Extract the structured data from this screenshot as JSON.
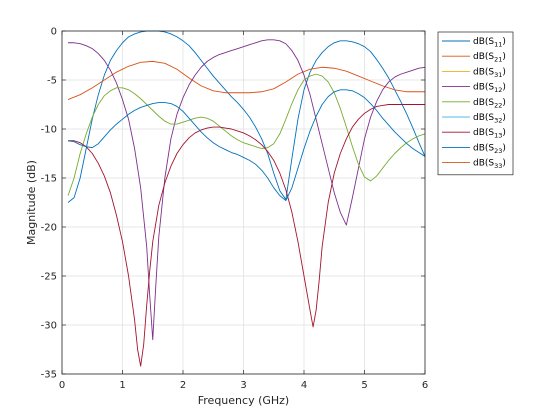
{
  "chart_data": {
    "type": "line",
    "xlabel": "Frequency (GHz)",
    "ylabel": "Magnitude (dB)",
    "xlim": [
      0,
      6
    ],
    "ylim": [
      -35,
      0
    ],
    "xticks": [
      0,
      1,
      2,
      3,
      4,
      5,
      6
    ],
    "yticks": [
      0,
      -5,
      -10,
      -15,
      -20,
      -25,
      -30,
      -35
    ],
    "grid": true,
    "legend_position": "outside-right-top",
    "series": [
      {
        "name": "dB(S11)",
        "label_main": "dB(S",
        "label_sub": "11",
        "label_end": ")",
        "color": "#0072BD",
        "x": [
          0.1,
          0.2,
          0.3,
          0.4,
          0.5,
          0.6,
          0.7,
          0.8,
          0.9,
          1.0,
          1.1,
          1.2,
          1.3,
          1.4,
          1.5,
          1.6,
          1.7,
          1.8,
          1.9,
          2.0,
          2.1,
          2.2,
          2.3,
          2.4,
          2.5,
          2.6,
          2.7,
          2.8,
          2.9,
          3.0,
          3.1,
          3.2,
          3.3,
          3.4,
          3.5,
          3.6,
          3.7,
          3.8,
          3.9,
          4.0,
          4.1,
          4.2,
          4.3,
          4.4,
          4.5,
          4.6,
          4.7,
          4.8,
          4.9,
          5.0,
          5.1,
          5.2,
          5.3,
          5.4,
          5.5,
          5.6,
          5.7,
          5.8,
          5.9,
          6.0
        ],
        "y": [
          -17.5,
          -17.0,
          -15.0,
          -12.0,
          -9.0,
          -6.5,
          -4.5,
          -3.0,
          -2.0,
          -1.2,
          -0.6,
          -0.3,
          -0.1,
          0.0,
          0.0,
          0.0,
          -0.1,
          -0.3,
          -0.6,
          -1.0,
          -1.5,
          -2.2,
          -3.0,
          -3.8,
          -4.6,
          -5.3,
          -6.0,
          -6.7,
          -7.3,
          -8.0,
          -8.8,
          -9.8,
          -11.0,
          -12.5,
          -14.5,
          -16.3,
          -17.2,
          -13.0,
          -9.0,
          -6.0,
          -4.2,
          -3.0,
          -2.2,
          -1.6,
          -1.2,
          -1.0,
          -1.0,
          -1.1,
          -1.3,
          -1.6,
          -2.1,
          -2.9,
          -3.8,
          -4.8,
          -6.0,
          -7.2,
          -8.5,
          -9.9,
          -11.4,
          -12.8
        ]
      },
      {
        "name": "dB(S21)",
        "label_main": "dB(S",
        "label_sub": "21",
        "label_end": ")",
        "color": "#D95319",
        "x": [
          0.1,
          0.3,
          0.5,
          0.7,
          0.9,
          1.1,
          1.3,
          1.5,
          1.7,
          1.9,
          2.1,
          2.3,
          2.5,
          2.7,
          2.9,
          3.1,
          3.3,
          3.5,
          3.7,
          3.9,
          4.1,
          4.3,
          4.5,
          4.7,
          4.9,
          5.1,
          5.3,
          5.5,
          5.7,
          5.9,
          6.0
        ],
        "y": [
          -7.0,
          -6.5,
          -5.8,
          -5.0,
          -4.2,
          -3.6,
          -3.2,
          -3.1,
          -3.3,
          -3.9,
          -4.8,
          -5.6,
          -6.1,
          -6.3,
          -6.3,
          -6.3,
          -6.2,
          -5.9,
          -5.2,
          -4.4,
          -3.9,
          -3.7,
          -3.8,
          -4.1,
          -4.6,
          -5.1,
          -5.6,
          -6.0,
          -6.2,
          -6.2,
          -6.2
        ]
      },
      {
        "name": "dB(S31)",
        "label_main": "dB(S",
        "label_sub": "31",
        "label_end": ")",
        "color": "#EDB120",
        "x": [],
        "y": []
      },
      {
        "name": "dB(S12)",
        "label_main": "dB(S",
        "label_sub": "12",
        "label_end": ")",
        "color": "#7E2F8E",
        "x": [
          0.1,
          0.2,
          0.3,
          0.4,
          0.5,
          0.6,
          0.7,
          0.8,
          0.9,
          1.0,
          1.1,
          1.2,
          1.3,
          1.4,
          1.45,
          1.5,
          1.55,
          1.6,
          1.7,
          1.8,
          1.9,
          2.0,
          2.1,
          2.2,
          2.3,
          2.4,
          2.5,
          2.6,
          2.7,
          2.8,
          2.9,
          3.0,
          3.1,
          3.2,
          3.3,
          3.4,
          3.5,
          3.6,
          3.7,
          3.8,
          3.9,
          4.0,
          4.1,
          4.2,
          4.3,
          4.4,
          4.5,
          4.6,
          4.7,
          4.8,
          4.9,
          5.0,
          5.1,
          5.2,
          5.3,
          5.4,
          5.5,
          5.6,
          5.7,
          5.8,
          5.9,
          6.0
        ],
        "y": [
          -1.2,
          -1.2,
          -1.3,
          -1.5,
          -1.8,
          -2.3,
          -3.0,
          -4.0,
          -5.3,
          -7.0,
          -9.0,
          -12.0,
          -16.0,
          -22.0,
          -27.0,
          -31.5,
          -26.0,
          -21.0,
          -15.0,
          -11.0,
          -8.5,
          -6.8,
          -5.5,
          -4.5,
          -3.7,
          -3.1,
          -2.7,
          -2.4,
          -2.2,
          -2.0,
          -1.8,
          -1.6,
          -1.4,
          -1.2,
          -1.0,
          -0.9,
          -0.9,
          -1.0,
          -1.3,
          -2.0,
          -3.0,
          -4.5,
          -6.5,
          -9.0,
          -11.5,
          -14.0,
          -16.5,
          -18.5,
          -19.8,
          -17.0,
          -14.0,
          -11.0,
          -8.8,
          -7.2,
          -6.0,
          -5.2,
          -4.7,
          -4.4,
          -4.2,
          -4.0,
          -3.8,
          -3.7
        ]
      },
      {
        "name": "dB(S22)",
        "label_main": "dB(S",
        "label_sub": "22",
        "label_end": ")",
        "color": "#77AC30",
        "x": [
          0.1,
          0.2,
          0.3,
          0.4,
          0.5,
          0.6,
          0.7,
          0.8,
          0.9,
          1.0,
          1.1,
          1.2,
          1.3,
          1.4,
          1.5,
          1.6,
          1.7,
          1.8,
          1.9,
          2.0,
          2.1,
          2.2,
          2.3,
          2.4,
          2.5,
          2.6,
          2.7,
          2.8,
          2.9,
          3.0,
          3.1,
          3.2,
          3.3,
          3.4,
          3.5,
          3.6,
          3.7,
          3.8,
          3.9,
          4.0,
          4.1,
          4.2,
          4.3,
          4.4,
          4.5,
          4.6,
          4.7,
          4.8,
          4.9,
          5.0,
          5.1,
          5.2,
          5.3,
          5.4,
          5.5,
          5.6,
          5.7,
          5.8,
          5.9,
          6.0
        ],
        "y": [
          -16.8,
          -15.0,
          -12.5,
          -10.5,
          -8.8,
          -7.5,
          -6.6,
          -6.1,
          -5.8,
          -5.8,
          -6.0,
          -6.4,
          -6.9,
          -7.5,
          -8.1,
          -8.7,
          -9.2,
          -9.5,
          -9.5,
          -9.3,
          -9.1,
          -8.9,
          -8.8,
          -8.9,
          -9.2,
          -9.7,
          -10.2,
          -10.7,
          -11.1,
          -11.4,
          -11.6,
          -11.8,
          -12.0,
          -11.9,
          -11.5,
          -10.5,
          -9.0,
          -7.4,
          -6.0,
          -5.0,
          -4.6,
          -4.4,
          -4.6,
          -5.2,
          -6.3,
          -7.9,
          -9.8,
          -11.8,
          -13.6,
          -14.9,
          -15.3,
          -14.8,
          -14.0,
          -13.2,
          -12.5,
          -11.9,
          -11.4,
          -11.0,
          -10.7,
          -10.5
        ]
      },
      {
        "name": "dB(S32)",
        "label_main": "dB(S",
        "label_sub": "32",
        "label_end": ")",
        "color": "#4DBEEE",
        "x": [],
        "y": []
      },
      {
        "name": "dB(S13)",
        "label_main": "dB(S",
        "label_sub": "13",
        "label_end": ")",
        "color": "#A2142F",
        "x": [
          0.1,
          0.2,
          0.3,
          0.4,
          0.5,
          0.6,
          0.7,
          0.8,
          0.9,
          1.0,
          1.1,
          1.2,
          1.25,
          1.3,
          1.35,
          1.4,
          1.45,
          1.5,
          1.6,
          1.7,
          1.8,
          1.9,
          2.0,
          2.1,
          2.2,
          2.3,
          2.4,
          2.5,
          2.6,
          2.7,
          2.8,
          2.9,
          3.0,
          3.1,
          3.2,
          3.3,
          3.4,
          3.5,
          3.6,
          3.7,
          3.8,
          3.9,
          4.0,
          4.1,
          4.15,
          4.2,
          4.25,
          4.3,
          4.4,
          4.5,
          4.6,
          4.7,
          4.8,
          4.9,
          5.0,
          5.1,
          5.2,
          5.3,
          5.4,
          5.5,
          5.6,
          5.7,
          5.8,
          5.9,
          6.0
        ],
        "y": [
          -11.2,
          -11.2,
          -11.4,
          -11.8,
          -12.5,
          -13.5,
          -14.8,
          -16.5,
          -18.8,
          -21.5,
          -25.0,
          -29.5,
          -32.5,
          -34.2,
          -32.0,
          -28.0,
          -24.5,
          -21.5,
          -17.8,
          -15.5,
          -13.8,
          -12.5,
          -11.6,
          -10.9,
          -10.4,
          -10.1,
          -9.9,
          -9.8,
          -9.8,
          -9.9,
          -10.0,
          -10.2,
          -10.4,
          -10.7,
          -11.1,
          -11.6,
          -12.3,
          -13.2,
          -14.5,
          -16.2,
          -18.5,
          -21.5,
          -25.0,
          -28.5,
          -30.2,
          -28.5,
          -25.5,
          -22.0,
          -17.5,
          -14.5,
          -12.5,
          -11.0,
          -9.8,
          -9.0,
          -8.4,
          -8.0,
          -7.7,
          -7.6,
          -7.5,
          -7.5,
          -7.5,
          -7.5,
          -7.5,
          -7.5,
          -7.5
        ]
      },
      {
        "name": "dB(S23)",
        "label_main": "dB(S",
        "label_sub": "23",
        "label_end": ")",
        "color": "#0072BD",
        "x": [
          0.1,
          0.2,
          0.3,
          0.4,
          0.5,
          0.6,
          0.7,
          0.8,
          0.9,
          1.0,
          1.1,
          1.2,
          1.3,
          1.4,
          1.5,
          1.6,
          1.7,
          1.8,
          1.9,
          2.0,
          2.1,
          2.2,
          2.3,
          2.4,
          2.5,
          2.6,
          2.7,
          2.8,
          2.9,
          3.0,
          3.1,
          3.2,
          3.3,
          3.4,
          3.5,
          3.6,
          3.7,
          3.8,
          3.9,
          4.0,
          4.1,
          4.2,
          4.3,
          4.4,
          4.5,
          4.6,
          4.7,
          4.8,
          4.9,
          5.0,
          5.1,
          5.2,
          5.3,
          5.4,
          5.5,
          5.6,
          5.7,
          5.8,
          5.9,
          6.0
        ],
        "y": [
          -11.2,
          -11.3,
          -11.6,
          -11.8,
          -11.9,
          -11.5,
          -10.8,
          -10.1,
          -9.5,
          -9.0,
          -8.5,
          -8.1,
          -7.8,
          -7.6,
          -7.4,
          -7.3,
          -7.3,
          -7.4,
          -7.7,
          -8.2,
          -8.9,
          -9.6,
          -10.3,
          -10.9,
          -11.4,
          -11.8,
          -12.1,
          -12.4,
          -12.6,
          -12.9,
          -13.2,
          -13.6,
          -14.2,
          -15.0,
          -16.0,
          -16.8,
          -17.3,
          -16.0,
          -14.0,
          -12.0,
          -10.2,
          -8.7,
          -7.5,
          -6.7,
          -6.2,
          -6.0,
          -6.0,
          -6.1,
          -6.4,
          -6.8,
          -7.4,
          -8.1,
          -8.9,
          -9.6,
          -10.3,
          -10.9,
          -11.5,
          -12.0,
          -12.4,
          -12.8
        ]
      },
      {
        "name": "dB(S33)",
        "label_main": "dB(S",
        "label_sub": "33",
        "label_end": ")",
        "color": "#D95319",
        "x": [],
        "y": []
      }
    ]
  }
}
